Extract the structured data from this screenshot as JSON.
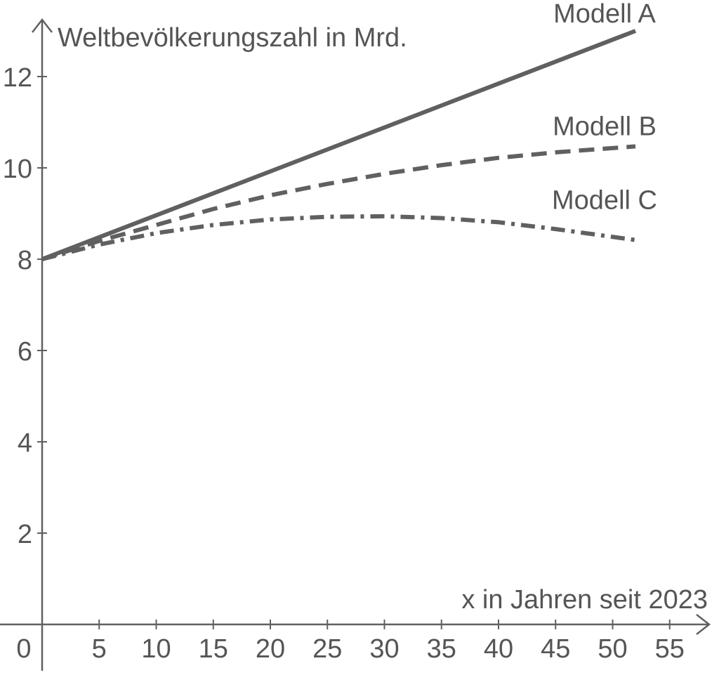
{
  "chart_data": {
    "type": "line",
    "title": "",
    "xlabel": "x in Jahren seit 2023",
    "ylabel": "Weltbevölkerungszahl in Mrd.",
    "xlim": [
      0,
      57
    ],
    "ylim": [
      0,
      13
    ],
    "grid": false,
    "legend": "inline-labels",
    "x_ticks": [
      5,
      10,
      15,
      20,
      25,
      30,
      35,
      40,
      45,
      50,
      55
    ],
    "y_ticks": [
      2,
      4,
      6,
      8,
      10,
      12
    ],
    "origin_label": "0",
    "line_color": "#606060",
    "series": [
      {
        "name": "Modell A",
        "style": "solid",
        "x": [
          0,
          52
        ],
        "y": [
          8.0,
          13.0
        ]
      },
      {
        "name": "Modell B",
        "style": "dashed",
        "x": [
          0,
          5,
          10,
          15,
          20,
          25,
          30,
          35,
          40,
          45,
          52
        ],
        "y": [
          8.0,
          8.4,
          8.75,
          9.1,
          9.4,
          9.65,
          9.87,
          10.06,
          10.22,
          10.34,
          10.47
        ]
      },
      {
        "name": "Modell C",
        "style": "dashdot",
        "x": [
          0,
          5,
          10,
          15,
          20,
          25,
          30,
          35,
          40,
          45,
          52
        ],
        "y": [
          8.0,
          8.32,
          8.57,
          8.75,
          8.87,
          8.93,
          8.94,
          8.9,
          8.81,
          8.66,
          8.42
        ]
      }
    ]
  }
}
